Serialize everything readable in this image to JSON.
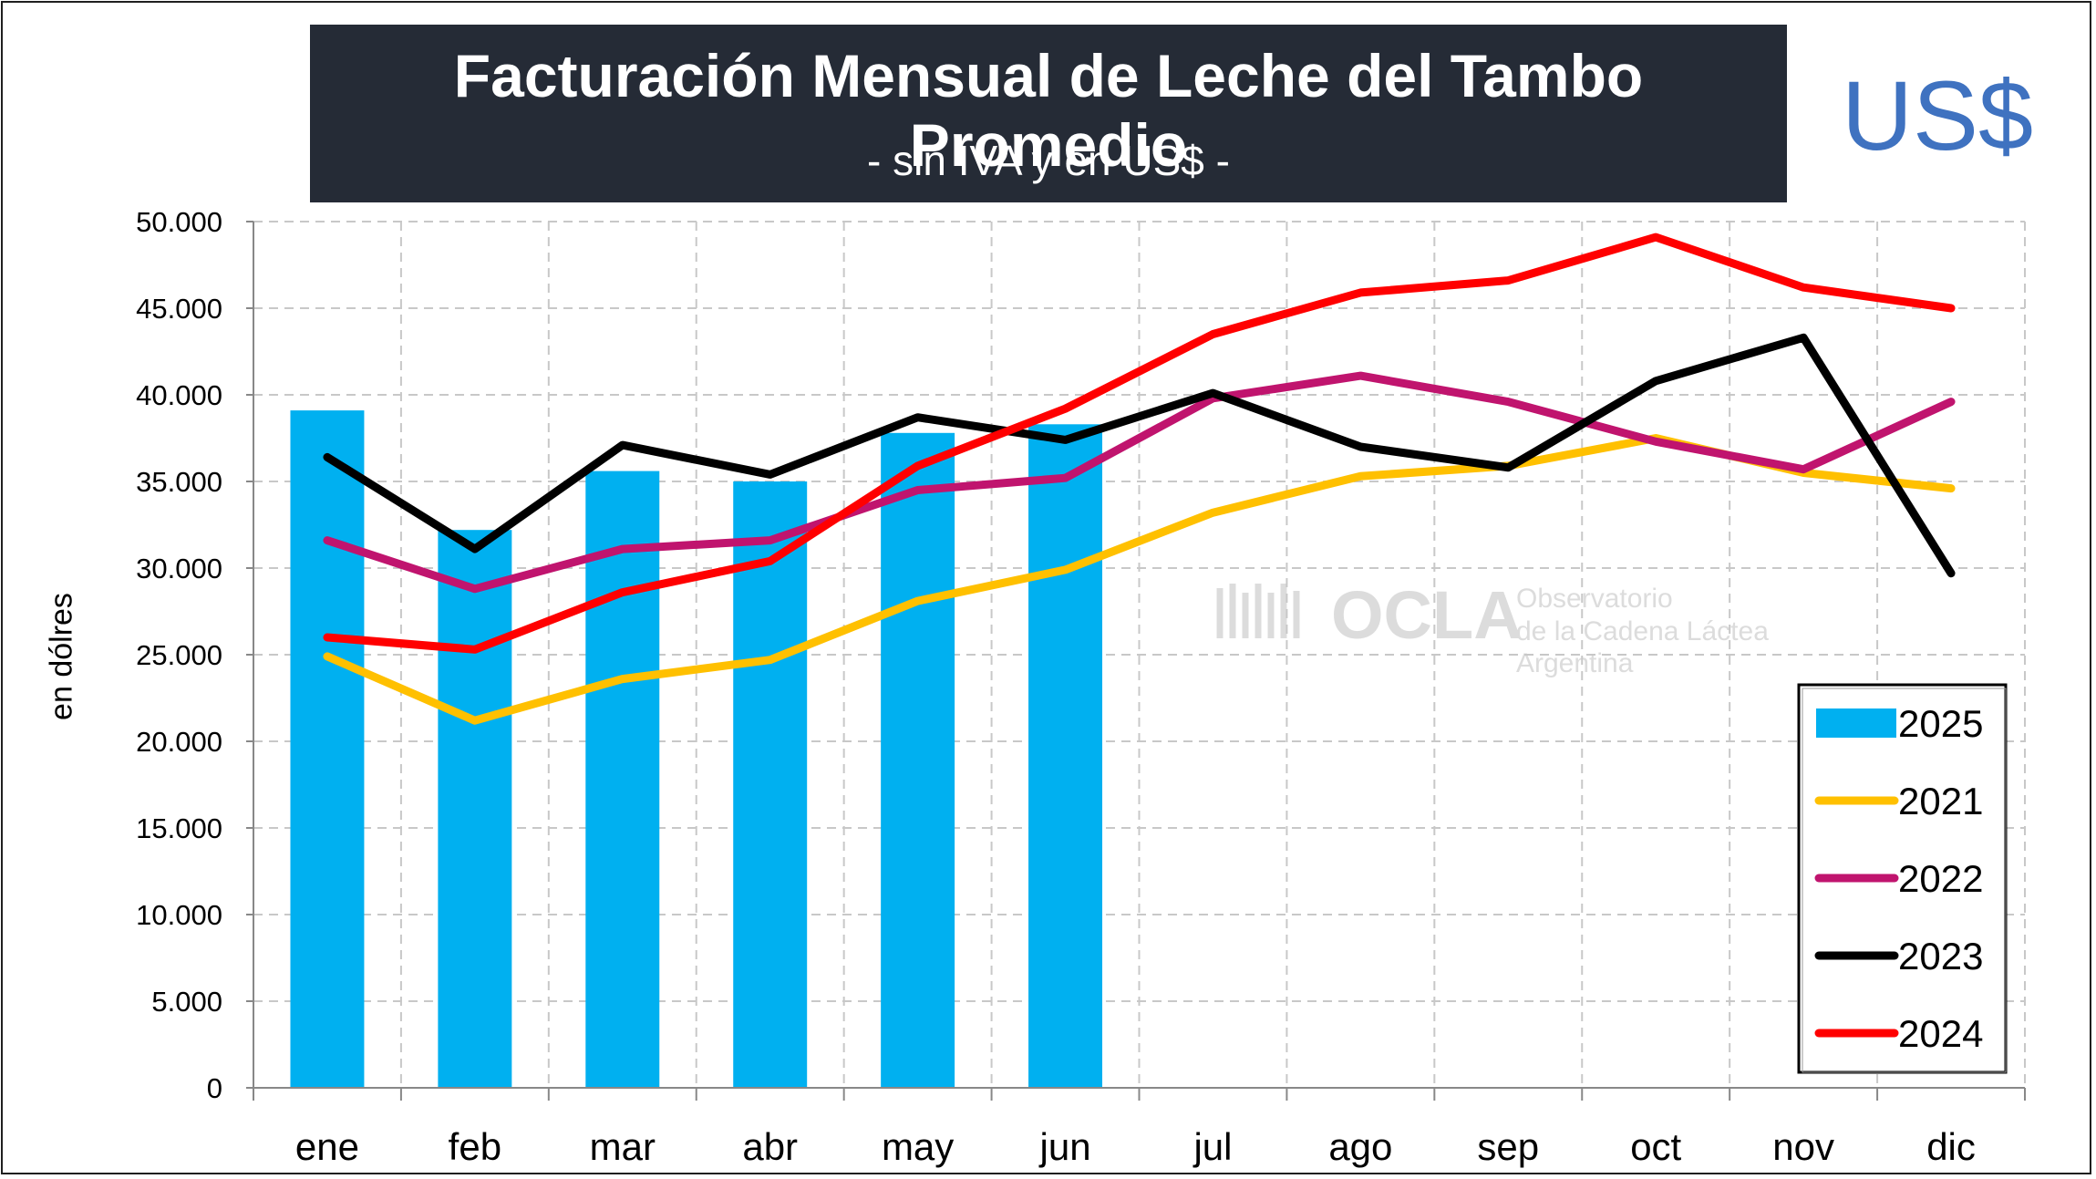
{
  "header": {
    "title": "Facturación Mensual de Leche del Tambo Promedio",
    "subtitle": "- sin IVA y en US$ -",
    "currency_badge": "US$"
  },
  "watermark": {
    "logo": "OCLA",
    "line1": "Observatorio",
    "line2": "de la Cadena Láctea",
    "line3": "Argentina"
  },
  "colors": {
    "2025": "#00b0f0",
    "2021": "#ffc000",
    "2022": "#c0146e",
    "2023": "#000000",
    "2024": "#ff0000"
  },
  "chart_data": {
    "type": "bar",
    "ylabel": "en dólres",
    "xlabel": "",
    "ylim": [
      0,
      50000
    ],
    "yticks": [
      "0",
      "5.000",
      "10.000",
      "15.000",
      "20.000",
      "25.000",
      "30.000",
      "35.000",
      "40.000",
      "45.000",
      "50.000"
    ],
    "grid": true,
    "legend_position": "bottom-right",
    "categories": [
      "ene",
      "feb",
      "mar",
      "abr",
      "may",
      "jun",
      "jul",
      "ago",
      "sep",
      "oct",
      "nov",
      "dic"
    ],
    "series": [
      {
        "name": "2025",
        "type": "bar",
        "color": "#00b0f0",
        "values": [
          39100,
          32200,
          35600,
          35000,
          37800,
          38300,
          null,
          null,
          null,
          null,
          null,
          null
        ]
      },
      {
        "name": "2021",
        "type": "line",
        "color": "#ffc000",
        "values": [
          24900,
          21200,
          23600,
          24700,
          28100,
          29900,
          33200,
          35300,
          35900,
          37500,
          35500,
          34600
        ]
      },
      {
        "name": "2022",
        "type": "line",
        "color": "#c0146e",
        "values": [
          31600,
          28800,
          31100,
          31600,
          34500,
          35200,
          39800,
          41100,
          39600,
          37300,
          35700,
          39600
        ]
      },
      {
        "name": "2023",
        "type": "line",
        "color": "#000000",
        "values": [
          36400,
          31100,
          37100,
          35400,
          38700,
          37400,
          40100,
          37000,
          35800,
          40800,
          43300,
          29700
        ]
      },
      {
        "name": "2024",
        "type": "line",
        "color": "#ff0000",
        "values": [
          26000,
          25300,
          28600,
          30400,
          35900,
          39200,
          43500,
          45900,
          46600,
          49100,
          46200,
          45000
        ]
      }
    ]
  }
}
